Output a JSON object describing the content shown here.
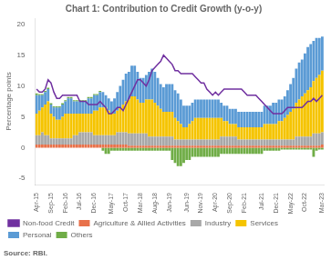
{
  "chart_data": {
    "type": "bar",
    "title": "Chart 1: Contribution to Credit Growth (y-o-y)",
    "ylabel": "Percentage points",
    "annotations": [
      "Source: RBI."
    ],
    "stacked": true,
    "grid": false,
    "legend": "bottom",
    "ylim": [
      -6,
      21
    ],
    "yticks": [
      -5,
      0,
      5,
      10,
      15,
      20
    ],
    "categories": [
      "Apr-15",
      null,
      null,
      null,
      null,
      "Sep-15",
      null,
      null,
      null,
      null,
      "Feb-16",
      null,
      null,
      null,
      null,
      "Jul-16",
      null,
      null,
      null,
      null,
      "Dec-16",
      null,
      null,
      null,
      null,
      null,
      "May-17",
      null,
      null,
      null,
      null,
      "Oct-17",
      null,
      null,
      null,
      null,
      "Mar-18",
      null,
      null,
      null,
      null,
      "Aug-18",
      null,
      null,
      null,
      null,
      "Jan-19",
      null,
      null,
      null,
      null,
      null,
      "Jun-19",
      null,
      null,
      null,
      null,
      "Nov-19",
      null,
      null,
      null,
      null,
      "Apr-20",
      null,
      null,
      null,
      null,
      "Sep-20",
      null,
      null,
      null,
      null,
      "Feb-21",
      null,
      null,
      null,
      null,
      null,
      "Jul-21",
      null,
      null,
      null,
      null,
      "Dec-21",
      null,
      null,
      null,
      null,
      "May-22",
      null,
      null,
      null,
      null,
      "Oct-22",
      null,
      null,
      null,
      null,
      null,
      "Mar-23"
    ],
    "series": [
      {
        "name": "Agriculture & Allied Activities",
        "type": "bar",
        "color": "#E8714A",
        "values": [
          0.5,
          0.5,
          0.5,
          0.5,
          0.5,
          0.5,
          0.5,
          0.5,
          0.5,
          0.5,
          0.5,
          0.5,
          0.5,
          0.5,
          0.5,
          0.5,
          0.5,
          0.5,
          0.5,
          0.5,
          0.5,
          0.5,
          0.5,
          0.5,
          0.5,
          0.5,
          0.5,
          0.5,
          0.5,
          0.5,
          0.5,
          0.5,
          0.3,
          0.3,
          0.3,
          0.3,
          0.3,
          0.3,
          0.3,
          0.3,
          0.3,
          0.3,
          0.3,
          0.3,
          0.3,
          0.3,
          0.3,
          0.3,
          0.3,
          0.3,
          0.3,
          0.3,
          0.3,
          0.3,
          0.3,
          0.3,
          0.3,
          0.3,
          0.3,
          0.3,
          0.3,
          0.3,
          0.3,
          0.3,
          0.3,
          0.3,
          0.3,
          0.3,
          0.3,
          0.3,
          0.3,
          0.3,
          0.3,
          0.3,
          0.3,
          0.3,
          0.3,
          0.3,
          0.3,
          0.3,
          0.3,
          0.3,
          0.3,
          0.3,
          0.3,
          0.3,
          0.3,
          0.3,
          0.3,
          0.3,
          0.3,
          0.3,
          0.3,
          0.3,
          0.3,
          0.3,
          0.3,
          0.3,
          0.3,
          0.5
        ]
      },
      {
        "name": "Industry",
        "type": "bar",
        "color": "#A8A8A8",
        "values": [
          1.5,
          1.5,
          2.0,
          1.5,
          1.5,
          1.0,
          1.0,
          1.0,
          1.0,
          1.0,
          1.0,
          1.0,
          1.0,
          1.5,
          1.5,
          2.0,
          2.0,
          2.0,
          2.0,
          2.0,
          1.5,
          1.5,
          1.5,
          1.5,
          1.5,
          1.5,
          1.5,
          1.5,
          2.0,
          2.0,
          2.0,
          2.0,
          2.0,
          2.0,
          2.0,
          2.0,
          2.0,
          2.0,
          2.0,
          1.5,
          1.5,
          1.5,
          1.5,
          1.5,
          1.5,
          1.5,
          1.5,
          1.5,
          1.0,
          1.0,
          1.0,
          1.0,
          1.0,
          1.0,
          1.0,
          1.0,
          1.0,
          1.0,
          1.0,
          1.0,
          1.0,
          1.0,
          1.0,
          1.0,
          1.5,
          1.5,
          1.5,
          1.5,
          1.5,
          1.5,
          1.0,
          1.0,
          1.0,
          1.0,
          1.0,
          1.0,
          1.0,
          1.0,
          1.0,
          1.0,
          1.0,
          1.0,
          1.0,
          1.0,
          1.0,
          1.0,
          1.0,
          1.0,
          1.0,
          1.0,
          1.5,
          1.5,
          1.5,
          1.5,
          1.5,
          1.5,
          2.0,
          2.0,
          2.0,
          2.0
        ]
      },
      {
        "name": "Services",
        "type": "bar",
        "color": "#F5C400",
        "values": [
          3.5,
          4.0,
          4.0,
          5.0,
          5.5,
          4.0,
          3.5,
          3.0,
          3.0,
          3.5,
          4.0,
          4.0,
          4.0,
          3.5,
          3.5,
          3.0,
          3.0,
          3.0,
          3.0,
          3.0,
          4.0,
          4.0,
          4.5,
          4.5,
          4.5,
          4.0,
          3.5,
          3.5,
          3.5,
          4.0,
          4.5,
          5.0,
          5.5,
          6.0,
          6.0,
          5.5,
          5.0,
          5.0,
          5.5,
          6.0,
          6.0,
          5.5,
          5.0,
          4.5,
          4.0,
          4.0,
          4.0,
          4.0,
          3.5,
          3.0,
          2.5,
          2.0,
          2.0,
          2.5,
          3.0,
          3.5,
          3.5,
          3.5,
          3.5,
          3.5,
          3.5,
          3.5,
          3.5,
          3.5,
          3.0,
          2.5,
          2.5,
          2.0,
          2.0,
          2.0,
          2.0,
          2.0,
          2.0,
          2.0,
          2.0,
          2.0,
          2.0,
          2.0,
          2.0,
          2.5,
          2.5,
          2.5,
          2.5,
          2.5,
          3.0,
          3.0,
          3.5,
          4.0,
          4.5,
          5.0,
          5.5,
          6.0,
          6.5,
          7.0,
          7.5,
          8.0,
          8.5,
          9.0,
          9.5,
          10.0
        ]
      },
      {
        "name": "Personal",
        "type": "bar",
        "color": "#5B9BD5",
        "values": [
          3.0,
          2.5,
          2.0,
          2.0,
          2.0,
          1.5,
          1.5,
          2.0,
          2.0,
          2.0,
          2.0,
          2.5,
          2.5,
          2.0,
          2.0,
          2.0,
          2.0,
          2.0,
          2.5,
          2.5,
          2.5,
          2.5,
          2.5,
          2.5,
          2.0,
          2.0,
          2.0,
          2.5,
          3.0,
          3.5,
          4.0,
          4.5,
          4.5,
          5.0,
          5.0,
          4.5,
          4.0,
          4.0,
          4.0,
          4.5,
          5.0,
          5.0,
          4.5,
          4.0,
          4.0,
          4.5,
          4.5,
          4.5,
          4.5,
          4.5,
          4.0,
          3.5,
          3.5,
          3.0,
          3.0,
          3.0,
          3.0,
          3.0,
          3.0,
          3.0,
          3.0,
          3.0,
          3.0,
          3.0,
          2.5,
          2.5,
          2.5,
          2.5,
          2.5,
          2.5,
          2.5,
          2.5,
          2.5,
          2.5,
          2.5,
          2.5,
          2.5,
          2.5,
          2.5,
          3.0,
          3.0,
          3.0,
          3.5,
          3.5,
          3.5,
          3.5,
          3.5,
          4.0,
          4.5,
          5.0,
          5.5,
          6.0,
          6.0,
          6.5,
          7.0,
          7.0,
          6.5,
          6.5,
          6.0,
          5.5
        ]
      },
      {
        "name": "Others",
        "type": "bar",
        "color": "#70AD47",
        "values": [
          0.3,
          0.2,
          0.2,
          0.2,
          0.2,
          0.2,
          0.2,
          0.2,
          0.2,
          0.2,
          0.2,
          0.2,
          0.2,
          0.2,
          0.2,
          0.2,
          0.2,
          0.2,
          0.2,
          0.2,
          0.2,
          0.2,
          0.2,
          -0.5,
          -1.0,
          -1.0,
          -0.5,
          -0.5,
          -0.5,
          -0.5,
          -0.5,
          -0.5,
          -0.5,
          -0.5,
          -0.5,
          -0.5,
          -0.5,
          -0.5,
          -0.5,
          -0.5,
          -0.5,
          -0.5,
          -0.5,
          -0.5,
          -0.5,
          -0.5,
          -0.5,
          -2.0,
          -2.5,
          -3.0,
          -3.0,
          -2.5,
          -2.0,
          -2.0,
          -1.5,
          -1.5,
          -1.5,
          -1.5,
          -1.5,
          -1.5,
          -1.5,
          -1.5,
          -1.5,
          -1.5,
          -1.0,
          -1.0,
          -1.0,
          -1.0,
          -1.0,
          -1.0,
          -1.0,
          -1.0,
          -1.0,
          -1.0,
          -1.0,
          -1.0,
          -1.0,
          -1.0,
          -1.0,
          -0.5,
          -0.5,
          -0.5,
          -0.5,
          -0.5,
          -0.5,
          -0.3,
          -0.3,
          -0.3,
          -0.3,
          -0.3,
          -0.3,
          -0.3,
          -0.3,
          -0.3,
          -0.3,
          -0.3,
          -1.5,
          -0.5,
          -0.3,
          -0.3
        ]
      },
      {
        "name": "Non-food Credit",
        "type": "line",
        "color": "#7030A0",
        "values": [
          9.5,
          9.0,
          9.0,
          9.5,
          11.0,
          10.5,
          9.0,
          8.0,
          8.0,
          8.5,
          8.5,
          8.5,
          8.5,
          8.5,
          8.5,
          7.5,
          7.5,
          7.5,
          7.0,
          7.0,
          7.0,
          7.0,
          7.5,
          7.0,
          6.5,
          5.5,
          5.5,
          6.0,
          6.5,
          6.5,
          6.0,
          7.0,
          8.0,
          9.0,
          10.0,
          11.0,
          11.0,
          10.5,
          10.0,
          11.0,
          12.5,
          13.0,
          13.5,
          14.0,
          15.0,
          14.5,
          14.0,
          13.5,
          12.5,
          12.5,
          12.0,
          12.0,
          12.0,
          12.0,
          12.0,
          11.5,
          11.0,
          10.5,
          10.5,
          9.5,
          9.0,
          8.5,
          9.0,
          8.5,
          9.0,
          9.5,
          9.5,
          9.5,
          9.5,
          9.5,
          9.5,
          9.5,
          9.0,
          8.5,
          8.5,
          8.5,
          8.5,
          8.0,
          7.5,
          7.0,
          6.5,
          6.0,
          5.5,
          5.5,
          5.5,
          5.5,
          6.0,
          6.5,
          6.5,
          6.5,
          6.5,
          6.5,
          6.5,
          7.0,
          7.5,
          7.5,
          8.0,
          7.5,
          8.0,
          8.5
        ]
      }
    ]
  }
}
